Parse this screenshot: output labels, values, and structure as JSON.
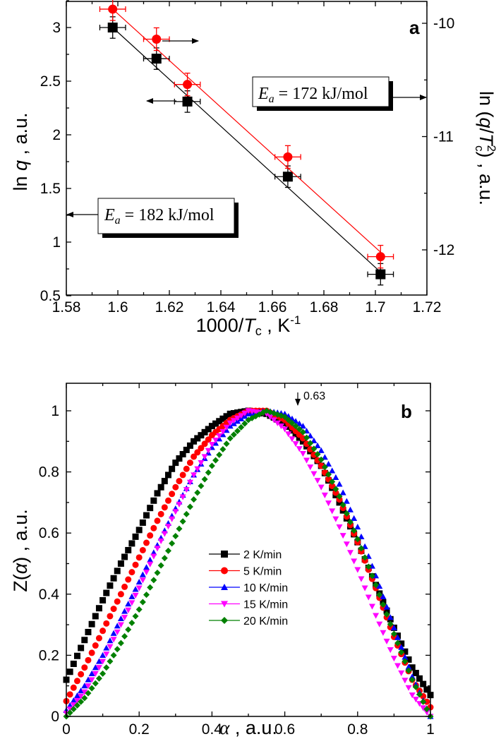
{
  "chart_data": [
    {
      "type": "scatter",
      "panel_label": "a",
      "xlabel": {
        "pre": "1000/",
        "var": "T",
        "sub": "c",
        "post": " , K",
        "sup": "-1"
      },
      "ylabel_left": {
        "pre": "ln ",
        "var": "q",
        "post": " , a.u."
      },
      "ylabel_right": {
        "pre": "ln (",
        "var": "q",
        "mid": "/",
        "var2": "T",
        "sub": "c",
        "sup": "2",
        "post": ") , a.u."
      },
      "xlim": [
        1.58,
        1.72
      ],
      "ylim_left": [
        0.5,
        3.26
      ],
      "ylim_right": [
        -12.41,
        -9.8
      ],
      "xticks": [
        1.58,
        1.6,
        1.62,
        1.64,
        1.66,
        1.68,
        1.7,
        1.72
      ],
      "yticks_left": [
        0.5,
        1,
        1.5,
        2,
        2.5,
        3
      ],
      "yticks_right": [
        -12,
        -11,
        -10
      ],
      "grid": false,
      "series": [
        {
          "name": "ln q",
          "axis": "left",
          "color": "#000000",
          "marker": "square",
          "x": [
            1.598,
            1.615,
            1.627,
            1.666,
            1.702
          ],
          "y": [
            3.0,
            2.71,
            2.31,
            1.61,
            0.7
          ],
          "xerr": 0.005,
          "yerr": 0.1,
          "fit": {
            "x": [
              1.598,
              1.702
            ],
            "y": [
              3.0,
              0.72
            ]
          }
        },
        {
          "name": "ln (q/Tc^2)",
          "axis": "right",
          "color": "#ff0000",
          "marker": "circle",
          "x": [
            1.598,
            1.615,
            1.627,
            1.666,
            1.702
          ],
          "y": [
            -9.875,
            -10.14,
            -10.54,
            -11.18,
            -12.06
          ],
          "xerr": 0.005,
          "yerr": 0.1,
          "fit": {
            "x": [
              1.598,
              1.702
            ],
            "y": [
              -9.875,
              -12.02
            ]
          }
        }
      ],
      "annotations": [
        {
          "pre": "E",
          "sub": "a",
          "post": " = 172 kJ/mol",
          "points_to": "right axis"
        },
        {
          "pre": "E",
          "sub": "a",
          "post": " = 182 kJ/mol",
          "points_to": "left axis"
        }
      ]
    },
    {
      "type": "line",
      "panel_label": "b",
      "xlabel": {
        "var": "α",
        "post": " , a.u."
      },
      "ylabel": {
        "pre": "Z(",
        "var": "α",
        "post": ") , a.u."
      },
      "xlim": [
        0,
        1
      ],
      "ylim": [
        0,
        1.09
      ],
      "xticks": [
        0,
        0.2,
        0.4,
        0.6,
        0.8,
        1
      ],
      "yticks": [
        0,
        0.2,
        0.4,
        0.6,
        0.8,
        1
      ],
      "grid": false,
      "legend_position": "center",
      "annotation": {
        "text": "0.63",
        "x": 0.63
      },
      "x": [
        0,
        0.05,
        0.1,
        0.15,
        0.2,
        0.25,
        0.3,
        0.35,
        0.4,
        0.45,
        0.5,
        0.55,
        0.6,
        0.65,
        0.7,
        0.75,
        0.8,
        0.85,
        0.9,
        0.95,
        1
      ],
      "series": [
        {
          "name": "2 K/min",
          "color": "#000000",
          "marker": "square",
          "values": [
            0.12,
            0.25,
            0.38,
            0.5,
            0.61,
            0.73,
            0.83,
            0.9,
            0.95,
            0.99,
            1.0,
            0.99,
            0.96,
            0.9,
            0.82,
            0.7,
            0.57,
            0.43,
            0.29,
            0.16,
            0.07
          ]
        },
        {
          "name": "5 K/min",
          "color": "#ff0000",
          "marker": "circle",
          "values": [
            0.05,
            0.16,
            0.28,
            0.4,
            0.52,
            0.64,
            0.75,
            0.85,
            0.92,
            0.97,
            1.0,
            1.0,
            0.97,
            0.91,
            0.82,
            0.71,
            0.57,
            0.42,
            0.26,
            0.12,
            0.03
          ]
        },
        {
          "name": "10 K/min",
          "color": "#0000ff",
          "marker": "triangle-up",
          "values": [
            0.02,
            0.1,
            0.2,
            0.32,
            0.44,
            0.56,
            0.68,
            0.79,
            0.88,
            0.95,
            0.99,
            1.0,
            0.99,
            0.95,
            0.87,
            0.76,
            0.62,
            0.46,
            0.29,
            0.13,
            0.0
          ]
        },
        {
          "name": "15 K/min",
          "color": "#ff00ff",
          "marker": "triangle-down",
          "values": [
            0.01,
            0.08,
            0.18,
            0.3,
            0.42,
            0.55,
            0.67,
            0.79,
            0.89,
            0.96,
            1.0,
            0.99,
            0.94,
            0.86,
            0.75,
            0.62,
            0.48,
            0.33,
            0.19,
            0.07,
            0.0
          ]
        },
        {
          "name": "20 K/min",
          "color": "#008000",
          "marker": "diamond",
          "values": [
            0.0,
            0.06,
            0.14,
            0.24,
            0.35,
            0.47,
            0.59,
            0.71,
            0.82,
            0.91,
            0.97,
            1.0,
            0.98,
            0.93,
            0.84,
            0.72,
            0.58,
            0.43,
            0.27,
            0.12,
            0.0
          ]
        }
      ]
    }
  ]
}
